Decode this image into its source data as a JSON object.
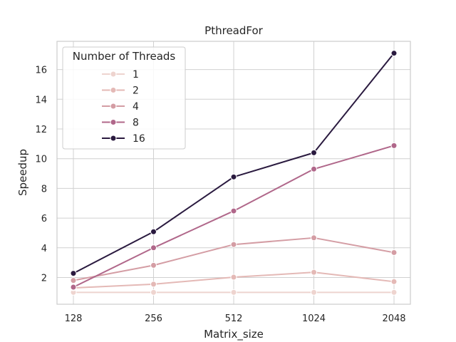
{
  "chart_data": {
    "type": "line",
    "title": "PthreadFor",
    "xlabel": "Matrix_size",
    "ylabel": "Speedup",
    "categories": [
      "128",
      "256",
      "512",
      "1024",
      "2048"
    ],
    "ylim": [
      0.2,
      17.9
    ],
    "yticks": [
      2,
      4,
      6,
      8,
      10,
      12,
      14,
      16
    ],
    "grid": true,
    "legend": {
      "title": "Number of Threads",
      "placement": "top-left"
    },
    "series": [
      {
        "name": "1",
        "color": "#eed4cf",
        "values": [
          1.0,
          1.0,
          1.0,
          1.0,
          1.0
        ]
      },
      {
        "name": "2",
        "color": "#e4b9b6",
        "values": [
          1.3,
          1.55,
          2.02,
          2.35,
          1.72
        ]
      },
      {
        "name": "4",
        "color": "#d49da4",
        "values": [
          1.8,
          2.82,
          4.22,
          4.67,
          3.68
        ]
      },
      {
        "name": "8",
        "color": "#b0678a",
        "values": [
          1.35,
          4.0,
          6.48,
          9.3,
          10.88
        ]
      },
      {
        "name": "16",
        "color": "#2a1a3f",
        "values": [
          2.28,
          5.08,
          8.77,
          10.4,
          17.1
        ]
      }
    ]
  }
}
